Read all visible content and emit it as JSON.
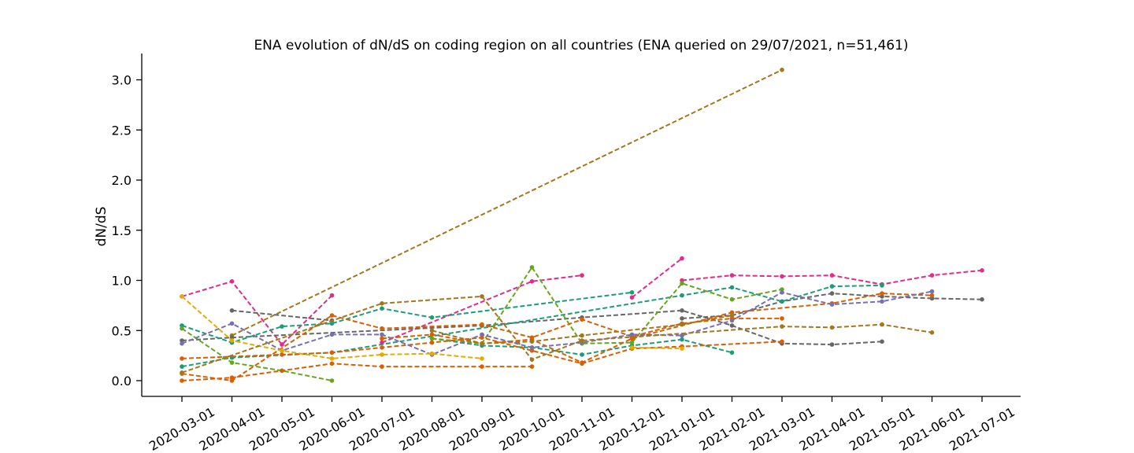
{
  "chart_data": {
    "type": "line",
    "title": "ENA evolution of dN/dS on coding region on all countries (ENA queried on 29/07/2021, n=51,461)",
    "xlabel": "",
    "ylabel": "dN/dS",
    "ylim": [
      -0.15,
      3.25
    ],
    "yticks": [
      "0.0",
      "0.5",
      "1.0",
      "1.5",
      "2.0",
      "2.5",
      "3.0"
    ],
    "categories": [
      "2020-03-01",
      "2020-04-01",
      "2020-05-01",
      "2020-06-01",
      "2020-07-01",
      "2020-08-01",
      "2020-09-01",
      "2020-10-01",
      "2020-11-01",
      "2020-12-01",
      "2021-01-01",
      "2021-02-01",
      "2021-03-01",
      "2021-04-01",
      "2021-05-01",
      "2021-06-01",
      "2021-07-01"
    ],
    "grid": false,
    "legend": "none",
    "line_style": "dashed",
    "series": [
      {
        "color": "#a6761d",
        "values": [
          null,
          0.45,
          null,
          null,
          null,
          null,
          null,
          null,
          null,
          null,
          null,
          null,
          3.1,
          null,
          null,
          null,
          null
        ]
      },
      {
        "color": "#e7298a",
        "values": [
          0.84,
          0.99,
          0.36,
          0.85,
          null,
          null,
          null,
          null,
          null,
          null,
          null,
          null,
          null,
          null,
          null,
          null,
          null
        ]
      },
      {
        "color": "#e7298a",
        "values": [
          null,
          null,
          null,
          null,
          0.38,
          null,
          null,
          0.99,
          1.05,
          null,
          null,
          null,
          null,
          null,
          null,
          null,
          null
        ]
      },
      {
        "color": "#e7298a",
        "values": [
          null,
          null,
          null,
          null,
          null,
          null,
          null,
          null,
          null,
          0.83,
          1.22,
          null,
          null,
          null,
          null,
          null,
          null
        ]
      },
      {
        "color": "#e7298a",
        "values": [
          null,
          null,
          null,
          null,
          null,
          null,
          null,
          null,
          null,
          null,
          1.0,
          1.05,
          1.04,
          1.05,
          0.96,
          1.05,
          1.1
        ]
      },
      {
        "color": "#666666",
        "values": [
          null,
          0.7,
          null,
          0.6,
          null,
          null,
          null,
          null,
          null,
          null,
          null,
          null,
          null,
          null,
          null,
          null,
          null
        ]
      },
      {
        "color": "#666666",
        "values": [
          null,
          null,
          null,
          null,
          null,
          null,
          null,
          null,
          null,
          null,
          0.62,
          0.65,
          0.79,
          0.87,
          0.84,
          0.82,
          0.81
        ]
      },
      {
        "color": "#666666",
        "values": [
          0.4,
          0.43,
          null,
          null,
          null,
          null,
          0.55,
          null,
          0.63,
          null,
          0.7,
          0.55,
          0.37,
          0.36,
          0.39,
          null,
          null
        ]
      },
      {
        "color": "#1b9e77",
        "values": [
          0.55,
          0.38,
          0.54,
          0.57,
          0.72,
          0.63,
          null,
          null,
          null,
          0.88,
          null,
          null,
          null,
          null,
          null,
          null,
          null
        ]
      },
      {
        "color": "#1b9e77",
        "values": [
          0.14,
          0.23,
          null,
          0.28,
          null,
          null,
          null,
          null,
          null,
          null,
          0.85,
          0.93,
          0.79,
          0.94,
          0.95,
          null,
          null
        ]
      },
      {
        "color": "#1b9e77",
        "values": [
          null,
          null,
          null,
          null,
          null,
          0.42,
          0.35,
          0.33,
          0.26,
          0.35,
          0.41,
          0.28,
          null,
          null,
          null,
          null,
          null
        ]
      },
      {
        "color": "#66a61e",
        "values": [
          0.52,
          0.18,
          0.1,
          0.0,
          null,
          null,
          null,
          null,
          null,
          null,
          null,
          null,
          null,
          null,
          null,
          null,
          null
        ]
      },
      {
        "color": "#66a61e",
        "values": [
          null,
          null,
          null,
          null,
          null,
          0.42,
          0.37,
          1.13,
          0.37,
          0.38,
          0.97,
          0.81,
          0.91,
          null,
          null,
          null,
          null
        ]
      },
      {
        "color": "#d95f02",
        "values": [
          0.0,
          0.03,
          0.1,
          0.17,
          0.14,
          null,
          0.14,
          0.14,
          null,
          null,
          null,
          null,
          null,
          null,
          null,
          null,
          null
        ]
      },
      {
        "color": "#d95f02",
        "values": [
          0.07,
          0.0,
          null,
          0.65,
          0.52,
          null,
          0.56,
          0.43,
          0.61,
          0.44,
          0.57,
          0.62,
          0.62,
          null,
          null,
          null,
          null
        ]
      },
      {
        "color": "#d95f02",
        "values": [
          null,
          null,
          null,
          null,
          0.42,
          0.46,
          0.37,
          0.41,
          0.18,
          0.42,
          null,
          0.68,
          null,
          0.77,
          0.87,
          0.85,
          null
        ]
      },
      {
        "color": "#d95f02",
        "values": [
          0.22,
          null,
          0.26,
          0.28,
          0.33,
          0.38,
          0.43,
          0.3,
          0.17,
          0.32,
          0.34,
          null,
          0.39,
          null,
          null,
          null,
          null
        ]
      },
      {
        "color": "#7570b3",
        "values": [
          0.37,
          0.57,
          0.3,
          0.46,
          0.46,
          0.26,
          0.46,
          0.33,
          0.38,
          0.46,
          0.45,
          0.6,
          0.88,
          0.76,
          0.79,
          0.89,
          null
        ]
      },
      {
        "color": "#e6ab02",
        "values": [
          0.84,
          0.4,
          0.3,
          0.22,
          0.26,
          0.27,
          0.22,
          null,
          null,
          null,
          null,
          null,
          null,
          null,
          null,
          null,
          null
        ]
      },
      {
        "color": "#e6ab02",
        "values": [
          null,
          null,
          null,
          null,
          null,
          null,
          null,
          null,
          null,
          0.33,
          0.32,
          null,
          null,
          null,
          null,
          null,
          null
        ]
      },
      {
        "color": "#a6761d",
        "values": [
          0.08,
          null,
          null,
          null,
          0.77,
          null,
          0.84,
          0.21,
          0.4,
          null,
          null,
          null,
          0.54,
          0.53,
          0.56,
          0.48,
          null
        ]
      },
      {
        "color": "#a6761d",
        "values": [
          null,
          null,
          null,
          null,
          null,
          0.5,
          0.37,
          0.39,
          0.45,
          null,
          0.56,
          0.65,
          null,
          null,
          null,
          null,
          null
        ]
      }
    ]
  }
}
